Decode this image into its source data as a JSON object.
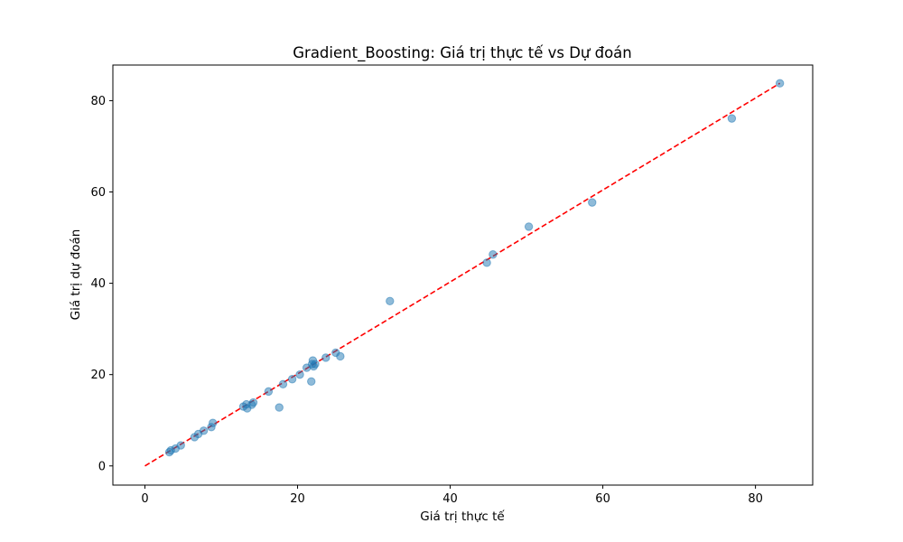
{
  "chart_data": {
    "type": "scatter",
    "title": "Gradient_Boosting: Giá trị thực tế vs Dự đoán",
    "xlabel": "Giá trị thực tế",
    "ylabel": "Giá trị dự đoán",
    "xlim": [
      -4.2,
      87.5
    ],
    "ylim": [
      -4.2,
      87.8
    ],
    "xticks": [
      0,
      20,
      40,
      60,
      80
    ],
    "yticks": [
      0,
      20,
      40,
      60,
      80
    ],
    "grid": false,
    "colors": {
      "points": "#1f77b4",
      "reference_line": "#ff0000"
    },
    "reference_line": {
      "style": "dashed",
      "from": [
        0,
        0
      ],
      "to": [
        83.2,
        83.8
      ]
    },
    "series": [
      {
        "points": [
          [
            3.2,
            3.0
          ],
          [
            3.4,
            3.4
          ],
          [
            4.0,
            3.8
          ],
          [
            4.7,
            4.5
          ],
          [
            6.5,
            6.3
          ],
          [
            7.0,
            7.0
          ],
          [
            7.7,
            7.7
          ],
          [
            8.7,
            8.5
          ],
          [
            8.9,
            9.4
          ],
          [
            12.9,
            13.0
          ],
          [
            13.3,
            13.5
          ],
          [
            13.4,
            12.6
          ],
          [
            14.0,
            13.4
          ],
          [
            14.2,
            13.9
          ],
          [
            16.2,
            16.3
          ],
          [
            17.6,
            12.8
          ],
          [
            18.1,
            17.9
          ],
          [
            19.3,
            19.0
          ],
          [
            20.3,
            20.0
          ],
          [
            21.2,
            21.5
          ],
          [
            21.8,
            18.5
          ],
          [
            21.9,
            22.3
          ],
          [
            22.0,
            23.1
          ],
          [
            22.1,
            21.8
          ],
          [
            22.3,
            22.3
          ],
          [
            23.7,
            23.7
          ],
          [
            25.0,
            24.8
          ],
          [
            25.6,
            24.0
          ],
          [
            32.1,
            36.1
          ],
          [
            44.8,
            44.5
          ],
          [
            45.6,
            46.3
          ],
          [
            50.3,
            52.4
          ],
          [
            58.6,
            57.7
          ],
          [
            76.9,
            76.1
          ],
          [
            83.2,
            83.8
          ]
        ]
      }
    ]
  }
}
